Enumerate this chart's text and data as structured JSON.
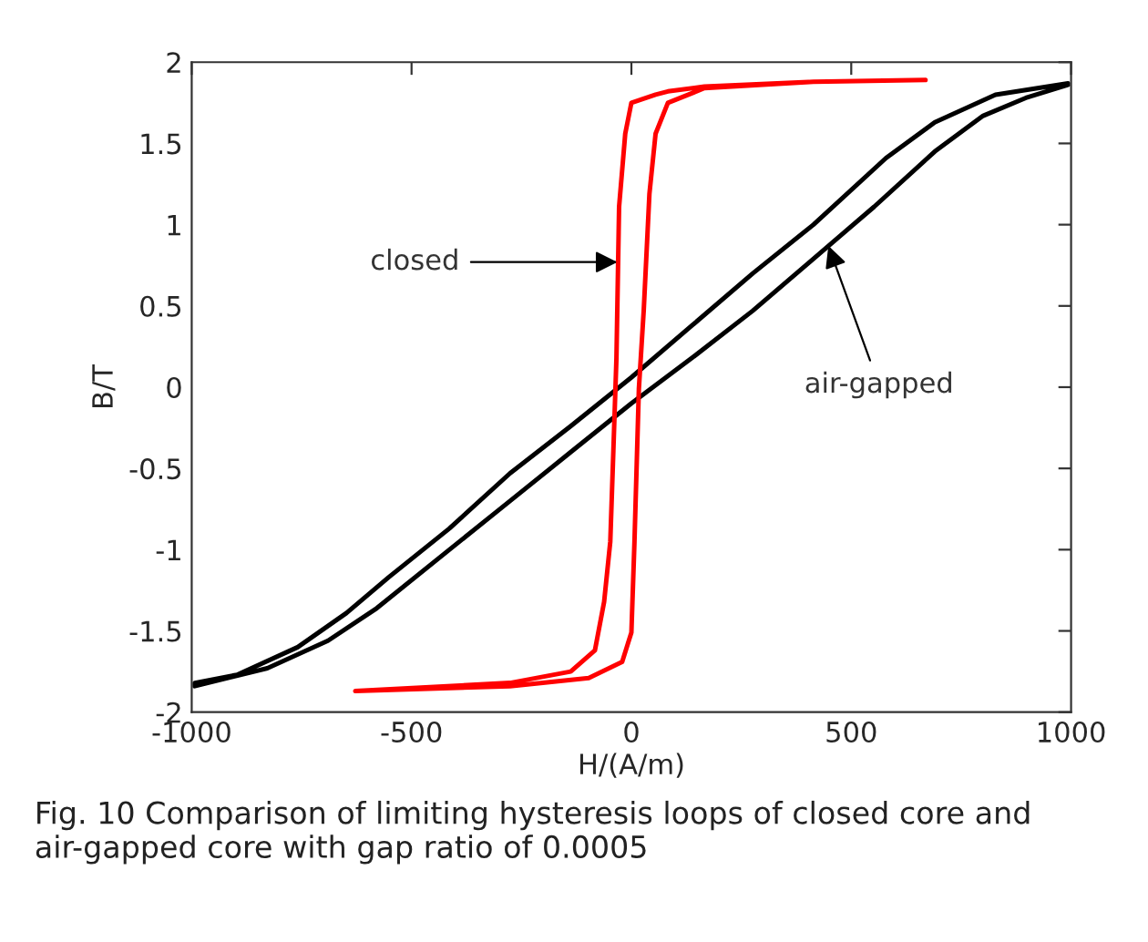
{
  "chart_data": {
    "type": "line",
    "xlabel": "H/(A/m)",
    "ylabel": "B/T",
    "xlim": [
      -1000,
      1000
    ],
    "xticks": [
      -1000,
      -500,
      0,
      500,
      1000
    ],
    "ylim": [
      -2,
      2
    ],
    "yticks": [
      -2,
      -1.5,
      -1,
      -0.5,
      0,
      0.5,
      1,
      1.5,
      2
    ],
    "grid": false,
    "legend": false,
    "marker": "none",
    "line_style": "solid",
    "series": [
      {
        "color": "#000000",
        "x": [
          993,
          828,
          690,
          579,
          414,
          276,
          138,
          0,
          -138,
          -276,
          -414,
          -552,
          -648,
          -759,
          -897,
          -993,
          -993,
          -828,
          -690,
          -579,
          -414,
          -276,
          -138,
          0,
          138,
          276,
          414,
          552,
          690,
          800,
          897,
          993
        ],
        "values": [
          1.87,
          1.8,
          1.63,
          1.41,
          1.0,
          0.7,
          0.38,
          0.06,
          -0.24,
          -0.53,
          -0.87,
          -1.17,
          -1.39,
          -1.6,
          -1.77,
          -1.82,
          -1.84,
          -1.73,
          -1.56,
          -1.36,
          -1.0,
          -0.7,
          -0.4,
          -0.1,
          0.18,
          0.47,
          0.79,
          1.11,
          1.45,
          1.67,
          1.78,
          1.86
        ]
      },
      {
        "color": "#ff0000",
        "x": [
          669,
          414,
          166,
          83,
          55,
          0,
          -14,
          -28,
          -34,
          -41,
          -48,
          -62,
          -83,
          -138,
          -276,
          -628,
          -276,
          -97,
          -21,
          0,
          7,
          17,
          28,
          41,
          55,
          83,
          166,
          414
        ],
        "values": [
          1.89,
          1.88,
          1.85,
          1.82,
          1.8,
          1.75,
          1.56,
          1.11,
          0.18,
          -0.39,
          -0.95,
          -1.32,
          -1.62,
          -1.75,
          -1.82,
          -1.87,
          -1.84,
          -1.79,
          -1.69,
          -1.51,
          -0.95,
          -0.01,
          0.47,
          1.19,
          1.56,
          1.75,
          1.84,
          1.88
        ]
      }
    ],
    "annotations": [
      {
        "text": "closed",
        "x": -32,
        "y": 0.77
      },
      {
        "text": "air-gapped",
        "x": 448,
        "y": 0.87
      },
      "Fig. 10 Comparison of limiting hysteresis loops of closed core and air-gapped core with gap ratio of 0.0005"
    ]
  }
}
